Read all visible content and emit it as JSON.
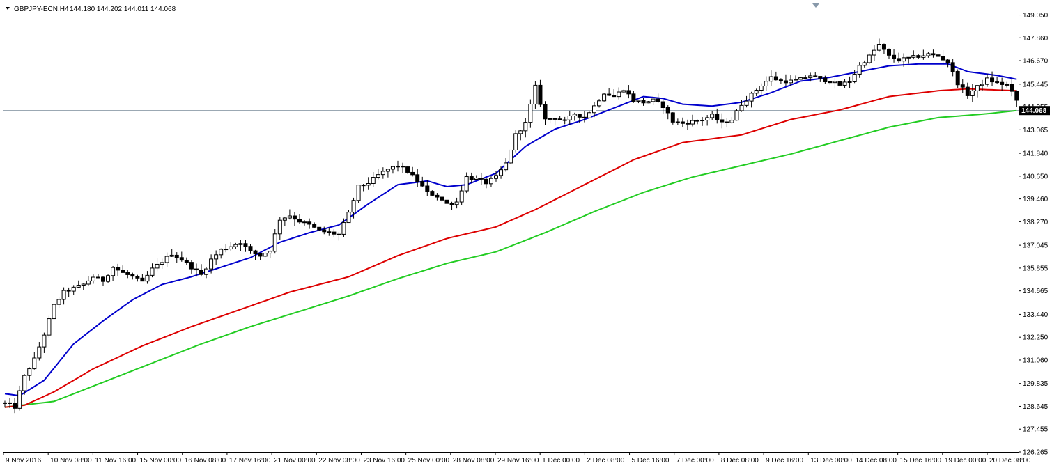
{
  "chart_data": {
    "type": "candlestick",
    "symbol": "GBPJPY-ECN,H4",
    "ohlc_header": "144.180 144.202 144.011 144.068",
    "current_price": 144.068,
    "current_price_label": "144.068",
    "ylim": [
      126.265,
      149.65
    ],
    "y_tick_labels": [
      "149.050",
      "147.860",
      "146.670",
      "145.445",
      "144.255",
      "143.065",
      "141.840",
      "140.650",
      "139.460",
      "138.270",
      "137.045",
      "135.855",
      "134.665",
      "133.440",
      "132.250",
      "131.060",
      "129.835",
      "128.645",
      "127.455",
      "126.265"
    ],
    "x_tick_labels": [
      "9 Nov 2016",
      "10 Nov 08:00",
      "11 Nov 16:00",
      "15 Nov 00:00",
      "16 Nov 08:00",
      "17 Nov 16:00",
      "21 Nov 00:00",
      "22 Nov 08:00",
      "23 Nov 16:00",
      "25 Nov 00:00",
      "28 Nov 08:00",
      "29 Nov 16:00",
      "1 Dec 00:00",
      "2 Dec 08:00",
      "5 Dec 16:00",
      "7 Dec 00:00",
      "8 Dec 08:00",
      "9 Dec 16:00",
      "13 Dec 00:00",
      "14 Dec 08:00",
      "15 Dec 16:00",
      "19 Dec 00:00",
      "20 Dec 08:00"
    ],
    "colors": {
      "ma_fast": "#0000cc",
      "ma_mid": "#dd0000",
      "ma_slow": "#22cc22",
      "candle": "#000000",
      "price_line": "#7a8b9a",
      "price_tag": "#000000"
    },
    "price_anchors": [
      [
        0,
        128.8
      ],
      [
        2,
        128.6
      ],
      [
        4,
        130.2
      ],
      [
        6,
        131.1
      ],
      [
        8,
        132.4
      ],
      [
        10,
        133.9
      ],
      [
        12,
        134.6
      ],
      [
        14,
        134.8
      ],
      [
        16,
        135.0
      ],
      [
        18,
        135.4
      ],
      [
        20,
        135.2
      ],
      [
        22,
        135.9
      ],
      [
        24,
        135.6
      ],
      [
        26,
        135.4
      ],
      [
        28,
        135.1
      ],
      [
        30,
        135.8
      ],
      [
        32,
        136.2
      ],
      [
        34,
        136.6
      ],
      [
        36,
        136.3
      ],
      [
        38,
        135.9
      ],
      [
        40,
        135.5
      ],
      [
        42,
        136.3
      ],
      [
        44,
        136.8
      ],
      [
        46,
        137.0
      ],
      [
        48,
        137.2
      ],
      [
        50,
        136.7
      ],
      [
        52,
        136.5
      ],
      [
        54,
        136.8
      ],
      [
        56,
        138.4
      ],
      [
        58,
        138.6
      ],
      [
        60,
        138.3
      ],
      [
        62,
        138.1
      ],
      [
        64,
        137.8
      ],
      [
        66,
        137.7
      ],
      [
        68,
        137.6
      ],
      [
        70,
        138.7
      ],
      [
        72,
        140.1
      ],
      [
        74,
        140.3
      ],
      [
        76,
        140.7
      ],
      [
        78,
        141.0
      ],
      [
        80,
        141.2
      ],
      [
        82,
        140.9
      ],
      [
        84,
        140.4
      ],
      [
        86,
        139.8
      ],
      [
        88,
        139.6
      ],
      [
        90,
        139.2
      ],
      [
        92,
        139.3
      ],
      [
        94,
        140.6
      ],
      [
        96,
        140.5
      ],
      [
        98,
        140.3
      ],
      [
        100,
        140.6
      ],
      [
        102,
        141.3
      ],
      [
        104,
        142.8
      ],
      [
        106,
        143.4
      ],
      [
        108,
        145.3
      ],
      [
        110,
        143.6
      ],
      [
        112,
        143.7
      ],
      [
        114,
        143.5
      ],
      [
        116,
        143.9
      ],
      [
        118,
        143.7
      ],
      [
        120,
        144.3
      ],
      [
        122,
        145.0
      ],
      [
        124,
        144.8
      ],
      [
        126,
        145.2
      ],
      [
        128,
        144.6
      ],
      [
        130,
        144.5
      ],
      [
        132,
        144.6
      ],
      [
        134,
        144.3
      ],
      [
        136,
        143.5
      ],
      [
        138,
        143.4
      ],
      [
        140,
        143.5
      ],
      [
        142,
        143.6
      ],
      [
        144,
        143.8
      ],
      [
        146,
        143.4
      ],
      [
        148,
        143.6
      ],
      [
        150,
        144.4
      ],
      [
        152,
        144.9
      ],
      [
        154,
        145.4
      ],
      [
        156,
        145.8
      ],
      [
        158,
        145.6
      ],
      [
        160,
        145.6
      ],
      [
        162,
        145.7
      ],
      [
        164,
        145.9
      ],
      [
        166,
        145.7
      ],
      [
        168,
        145.6
      ],
      [
        170,
        145.4
      ],
      [
        172,
        145.6
      ],
      [
        174,
        146.4
      ],
      [
        176,
        146.9
      ],
      [
        178,
        147.5
      ],
      [
        180,
        146.9
      ],
      [
        182,
        146.7
      ],
      [
        184,
        146.8
      ],
      [
        186,
        146.9
      ],
      [
        188,
        147.0
      ],
      [
        190,
        146.9
      ],
      [
        192,
        146.6
      ],
      [
        194,
        145.5
      ],
      [
        196,
        144.9
      ],
      [
        198,
        145.3
      ],
      [
        200,
        145.7
      ],
      [
        202,
        145.5
      ],
      [
        204,
        145.4
      ],
      [
        206,
        144.6
      ]
    ],
    "ma_fast": [
      [
        0,
        129.3
      ],
      [
        3,
        129.2
      ],
      [
        8,
        130.0
      ],
      [
        14,
        131.9
      ],
      [
        20,
        133.1
      ],
      [
        26,
        134.2
      ],
      [
        32,
        135.0
      ],
      [
        38,
        135.4
      ],
      [
        44,
        135.9
      ],
      [
        50,
        136.4
      ],
      [
        56,
        137.2
      ],
      [
        62,
        137.7
      ],
      [
        68,
        138.1
      ],
      [
        74,
        139.2
      ],
      [
        80,
        140.2
      ],
      [
        86,
        140.4
      ],
      [
        90,
        140.1
      ],
      [
        94,
        140.2
      ],
      [
        100,
        140.8
      ],
      [
        106,
        142.2
      ],
      [
        112,
        143.1
      ],
      [
        118,
        143.6
      ],
      [
        124,
        144.2
      ],
      [
        130,
        144.8
      ],
      [
        134,
        144.7
      ],
      [
        138,
        144.4
      ],
      [
        144,
        144.3
      ],
      [
        150,
        144.5
      ],
      [
        156,
        145.0
      ],
      [
        162,
        145.6
      ],
      [
        168,
        145.8
      ],
      [
        174,
        146.1
      ],
      [
        180,
        146.4
      ],
      [
        186,
        146.5
      ],
      [
        192,
        146.5
      ],
      [
        196,
        146.1
      ],
      [
        202,
        145.9
      ],
      [
        206,
        145.7
      ]
    ],
    "ma_mid": [
      [
        0,
        128.6
      ],
      [
        4,
        128.7
      ],
      [
        10,
        129.4
      ],
      [
        18,
        130.6
      ],
      [
        28,
        131.8
      ],
      [
        38,
        132.8
      ],
      [
        48,
        133.7
      ],
      [
        58,
        134.6
      ],
      [
        70,
        135.4
      ],
      [
        80,
        136.5
      ],
      [
        90,
        137.4
      ],
      [
        100,
        138.0
      ],
      [
        108,
        138.9
      ],
      [
        118,
        140.2
      ],
      [
        128,
        141.5
      ],
      [
        138,
        142.4
      ],
      [
        150,
        142.8
      ],
      [
        160,
        143.6
      ],
      [
        170,
        144.1
      ],
      [
        180,
        144.8
      ],
      [
        190,
        145.1
      ],
      [
        196,
        145.2
      ],
      [
        206,
        145.1
      ]
    ],
    "ma_slow": [
      [
        0,
        128.6
      ],
      [
        10,
        128.9
      ],
      [
        20,
        129.9
      ],
      [
        30,
        130.9
      ],
      [
        40,
        131.9
      ],
      [
        50,
        132.8
      ],
      [
        60,
        133.6
      ],
      [
        70,
        134.4
      ],
      [
        80,
        135.3
      ],
      [
        90,
        136.1
      ],
      [
        100,
        136.7
      ],
      [
        110,
        137.7
      ],
      [
        120,
        138.8
      ],
      [
        130,
        139.8
      ],
      [
        140,
        140.6
      ],
      [
        150,
        141.2
      ],
      [
        160,
        141.8
      ],
      [
        170,
        142.5
      ],
      [
        180,
        143.2
      ],
      [
        190,
        143.7
      ],
      [
        200,
        143.9
      ],
      [
        206,
        144.068
      ]
    ]
  }
}
